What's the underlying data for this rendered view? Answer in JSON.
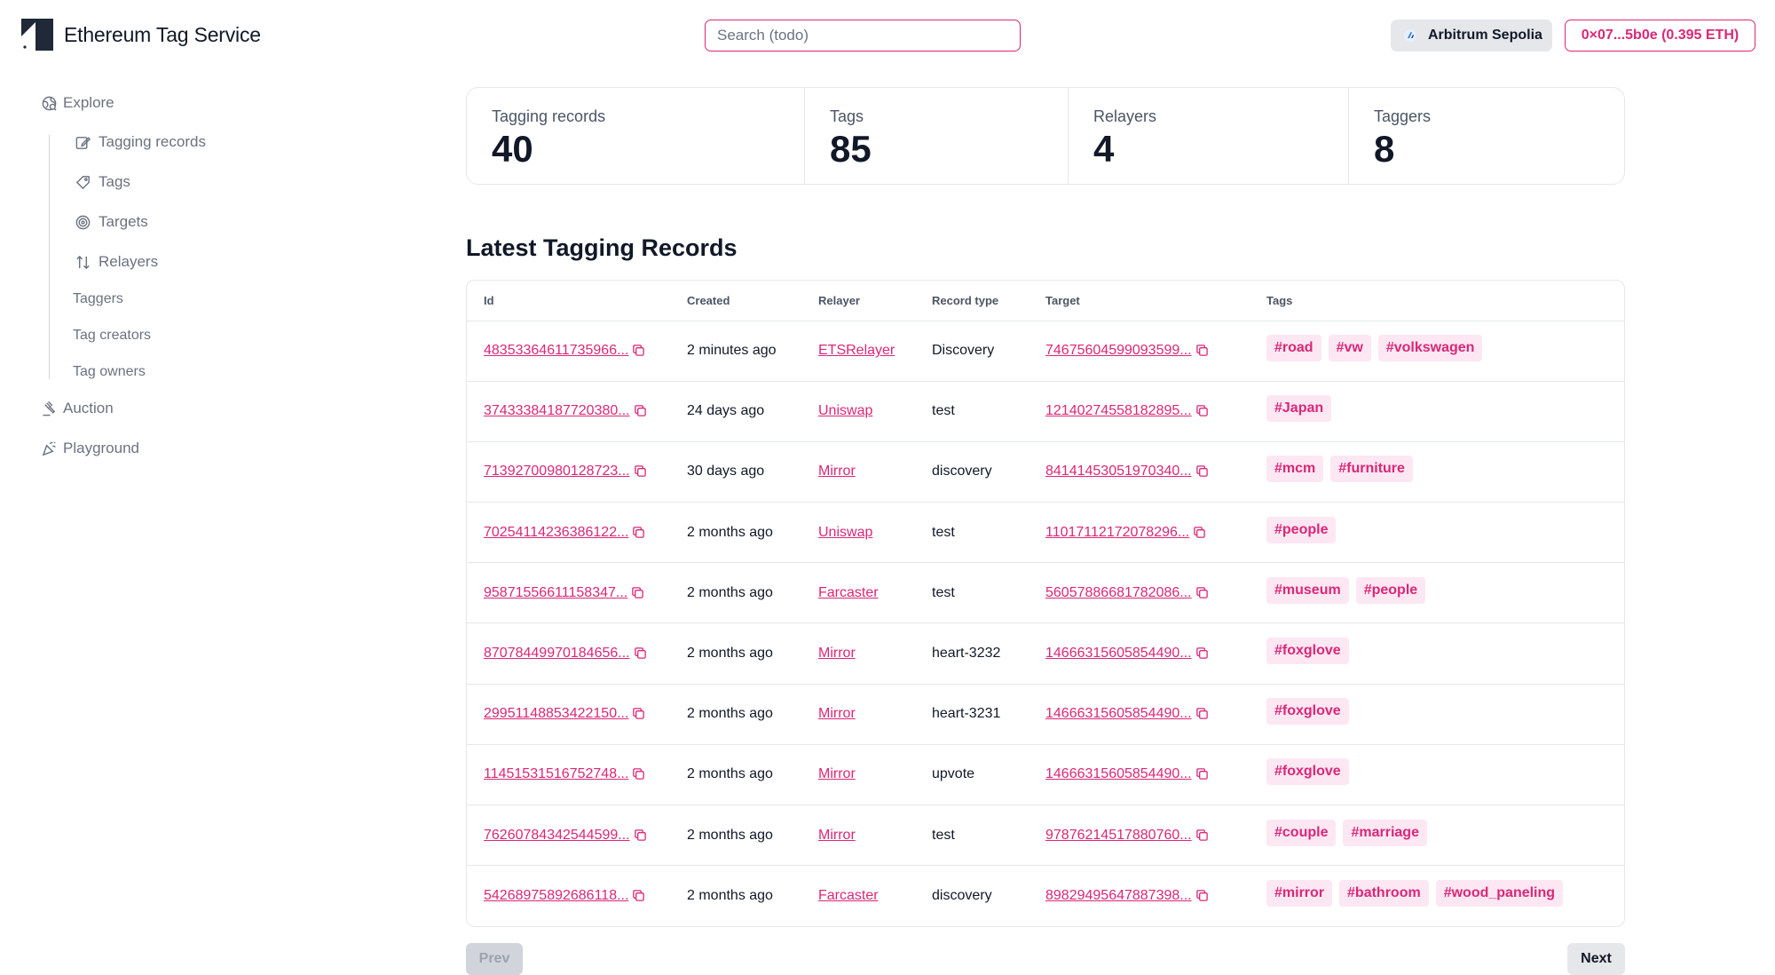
{
  "app": {
    "title": "Ethereum Tag Service"
  },
  "search": {
    "placeholder": "Search (todo)"
  },
  "network": {
    "label": "Arbitrum Sepolia",
    "icon": "arbitrum-icon"
  },
  "wallet": {
    "label": "0×07...5b0e (0.395 ETH)"
  },
  "colors": {
    "accent": "#db2777",
    "tag_bg": "#fce7f3",
    "muted": "#6b7280"
  },
  "sidebar": {
    "explore": "Explore",
    "sub_items": [
      {
        "label": "Tagging records",
        "icon": "edit-icon"
      },
      {
        "label": "Tags",
        "icon": "tag-icon"
      },
      {
        "label": "Targets",
        "icon": "target-icon"
      },
      {
        "label": "Relayers",
        "icon": "arrows-up-down-icon"
      },
      {
        "label": "Taggers"
      },
      {
        "label": "Tag creators"
      },
      {
        "label": "Tag owners"
      }
    ],
    "auction": "Auction",
    "playground": "Playground"
  },
  "stats": [
    {
      "label": "Tagging records",
      "value": "40"
    },
    {
      "label": "Tags",
      "value": "85"
    },
    {
      "label": "Relayers",
      "value": "4"
    },
    {
      "label": "Taggers",
      "value": "8"
    }
  ],
  "section_title": "Latest Tagging Records",
  "table": {
    "headers": [
      "Id",
      "Created",
      "Relayer",
      "Record type",
      "Target",
      "Tags"
    ],
    "rows": [
      {
        "id": "48353364611735966...",
        "created": "2 minutes ago",
        "relayer": "ETSRelayer",
        "type": "Discovery",
        "target": "74675604599093599...",
        "tags": [
          "#road",
          "#vw",
          "#volkswagen"
        ]
      },
      {
        "id": "37433384187720380...",
        "created": "24 days ago",
        "relayer": "Uniswap",
        "type": "test",
        "target": "12140274558182895...",
        "tags": [
          "#Japan"
        ]
      },
      {
        "id": "71392700980128723...",
        "created": "30 days ago",
        "relayer": "Mirror",
        "type": "discovery",
        "target": "84141453051970340...",
        "tags": [
          "#mcm",
          "#furniture"
        ]
      },
      {
        "id": "70254114236386122...",
        "created": "2 months ago",
        "relayer": "Uniswap",
        "type": "test",
        "target": "11017112172078296...",
        "tags": [
          "#people"
        ]
      },
      {
        "id": "95871556611158347...",
        "created": "2 months ago",
        "relayer": "Farcaster",
        "type": "test",
        "target": "56057886681782086...",
        "tags": [
          "#museum",
          "#people"
        ]
      },
      {
        "id": "87078449970184656...",
        "created": "2 months ago",
        "relayer": "Mirror",
        "type": "heart-3232",
        "target": "14666315605854490...",
        "tags": [
          "#foxglove"
        ]
      },
      {
        "id": "29951148853422150...",
        "created": "2 months ago",
        "relayer": "Mirror",
        "type": "heart-3231",
        "target": "14666315605854490...",
        "tags": [
          "#foxglove"
        ]
      },
      {
        "id": "11451531516752748...",
        "created": "2 months ago",
        "relayer": "Mirror",
        "type": "upvote",
        "target": "14666315605854490...",
        "tags": [
          "#foxglove"
        ]
      },
      {
        "id": "76260784342544599...",
        "created": "2 months ago",
        "relayer": "Mirror",
        "type": "test",
        "target": "97876214517880760...",
        "tags": [
          "#couple",
          "#marriage"
        ]
      },
      {
        "id": "54268975892686118...",
        "created": "2 months ago",
        "relayer": "Farcaster",
        "type": "discovery",
        "target": "89829495647887398...",
        "tags": [
          "#mirror",
          "#bathroom",
          "#wood_paneling"
        ]
      }
    ]
  },
  "pagination": {
    "prev": "Prev",
    "next": "Next"
  }
}
